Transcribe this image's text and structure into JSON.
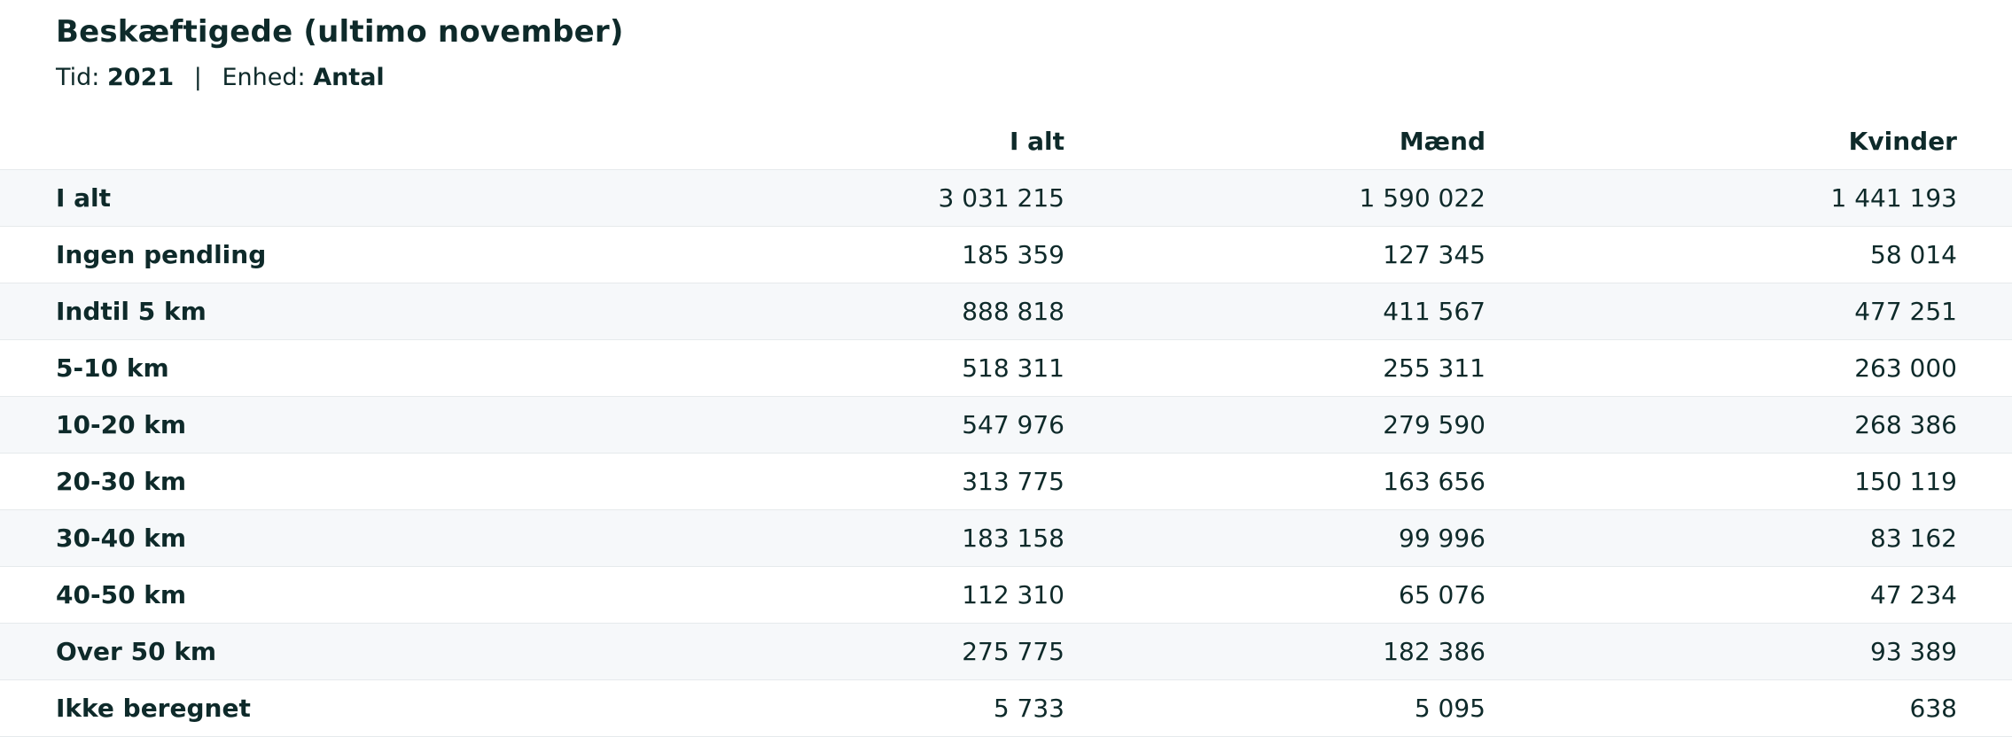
{
  "header": {
    "title": "Beskæftigede (ultimo november)",
    "time_label": "Tid:",
    "time_value": "2021",
    "separator": "|",
    "unit_label": "Enhed:",
    "unit_value": "Antal"
  },
  "table": {
    "columns": [
      "I alt",
      "Mænd",
      "Kvinder"
    ],
    "rows": [
      {
        "label": "I alt",
        "values": [
          "3 031 215",
          "1 590 022",
          "1 441 193"
        ]
      },
      {
        "label": "Ingen pendling",
        "values": [
          "185 359",
          "127 345",
          "58 014"
        ]
      },
      {
        "label": "Indtil 5 km",
        "values": [
          "888 818",
          "411 567",
          "477 251"
        ]
      },
      {
        "label": "5-10 km",
        "values": [
          "518 311",
          "255 311",
          "263 000"
        ]
      },
      {
        "label": "10-20 km",
        "values": [
          "547 976",
          "279 590",
          "268 386"
        ]
      },
      {
        "label": "20-30 km",
        "values": [
          "313 775",
          "163 656",
          "150 119"
        ]
      },
      {
        "label": "30-40 km",
        "values": [
          "183 158",
          "99 996",
          "83 162"
        ]
      },
      {
        "label": "40-50 km",
        "values": [
          "112 310",
          "65 076",
          "47 234"
        ]
      },
      {
        "label": "Over 50 km",
        "values": [
          "275 775",
          "182 386",
          "93 389"
        ]
      },
      {
        "label": "Ikke beregnet",
        "values": [
          "5 733",
          "5 095",
          "638"
        ]
      }
    ]
  },
  "colors": {
    "text": "#0e2a2a",
    "row_stripe": "#f6f8fa",
    "row_border": "#e6eaec"
  }
}
